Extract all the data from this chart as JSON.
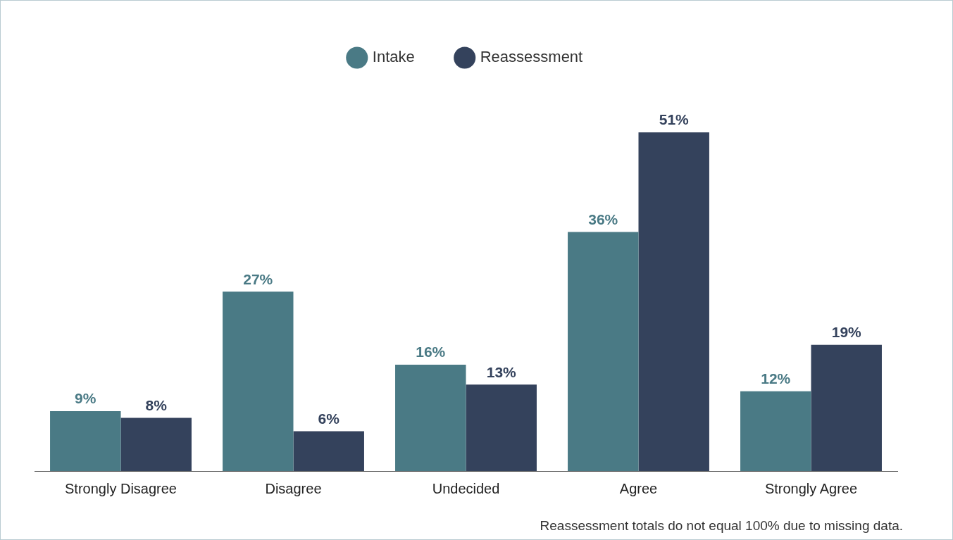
{
  "chart_data": {
    "type": "bar",
    "categories": [
      "Strongly Disagree",
      "Disagree",
      "Undecided",
      "Agree",
      "Strongly Agree"
    ],
    "series": [
      {
        "name": "Intake",
        "color": "#4a7a85",
        "values": [
          9,
          27,
          16,
          36,
          12
        ],
        "value_labels": [
          "9%",
          "27%",
          "16%",
          "36%",
          "12%"
        ]
      },
      {
        "name": "Reassessment",
        "color": "#34425c",
        "values": [
          8,
          6,
          13,
          51,
          19
        ],
        "value_labels": [
          "8%",
          "6%",
          "13%",
          "51%",
          "19%"
        ]
      }
    ],
    "legend": "top",
    "grid": false,
    "tick_labels": "x",
    "annotations": [
      "Reassessment totals do not equal 100% due to missing data."
    ]
  }
}
